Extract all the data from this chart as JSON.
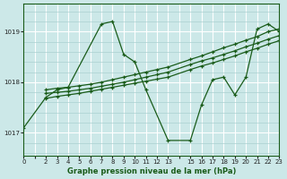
{
  "bg_color": "#cce8e8",
  "line_color": "#1a5c1a",
  "grid_major_color": "#ffffff",
  "grid_minor_color": "#aad0d0",
  "xlabel": "Graphe pression niveau de la mer (hPa)",
  "xlim": [
    0,
    23
  ],
  "ylim": [
    1016.55,
    1019.55
  ],
  "yticks": [
    1017,
    1018,
    1019
  ],
  "xtick_positions": [
    0,
    2,
    3,
    4,
    5,
    6,
    7,
    8,
    9,
    10,
    11,
    12,
    13,
    15,
    16,
    17,
    18,
    19,
    20,
    21,
    22,
    23
  ],
  "series": [
    {
      "x": [
        0,
        2,
        3,
        4,
        7,
        8,
        9,
        10,
        11,
        13,
        15,
        16,
        17,
        18,
        19,
        20,
        21,
        22,
        23
      ],
      "y": [
        1017.1,
        1017.7,
        1017.85,
        1017.9,
        1019.15,
        1019.2,
        1018.55,
        1018.4,
        1017.85,
        1016.85,
        1016.85,
        1017.55,
        1018.05,
        1018.1,
        1017.75,
        1018.1,
        1019.05,
        1019.15,
        1019.0
      ]
    },
    {
      "x": [
        2,
        3,
        4,
        5,
        6,
        7,
        8,
        9,
        10,
        11,
        12,
        13,
        15,
        16,
        17,
        18,
        19,
        20,
        21,
        22,
        23
      ],
      "y": [
        1017.85,
        1017.88,
        1017.9,
        1017.93,
        1017.96,
        1018.0,
        1018.05,
        1018.1,
        1018.15,
        1018.2,
        1018.25,
        1018.3,
        1018.45,
        1018.52,
        1018.6,
        1018.68,
        1018.75,
        1018.83,
        1018.9,
        1019.0,
        1019.05
      ]
    },
    {
      "x": [
        2,
        3,
        4,
        5,
        6,
        7,
        8,
        9,
        10,
        11,
        12,
        13,
        15,
        16,
        17,
        18,
        19,
        20,
        21,
        22,
        23
      ],
      "y": [
        1017.78,
        1017.8,
        1017.82,
        1017.85,
        1017.88,
        1017.92,
        1017.96,
        1018.0,
        1018.05,
        1018.1,
        1018.15,
        1018.2,
        1018.35,
        1018.42,
        1018.48,
        1018.55,
        1018.62,
        1018.7,
        1018.77,
        1018.85,
        1018.92
      ]
    },
    {
      "x": [
        2,
        3,
        4,
        5,
        6,
        7,
        8,
        9,
        10,
        11,
        12,
        13,
        15,
        16,
        17,
        18,
        19,
        20,
        21,
        22,
        23
      ],
      "y": [
        1017.68,
        1017.72,
        1017.75,
        1017.78,
        1017.82,
        1017.86,
        1017.9,
        1017.94,
        1017.98,
        1018.02,
        1018.06,
        1018.1,
        1018.25,
        1018.32,
        1018.38,
        1018.45,
        1018.52,
        1018.6,
        1018.67,
        1018.75,
        1018.82
      ]
    }
  ]
}
